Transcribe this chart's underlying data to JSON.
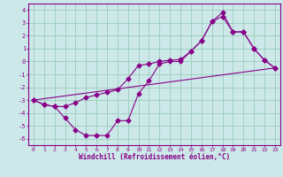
{
  "xlabel": "Windchill (Refroidissement éolien,°C)",
  "xlim": [
    -0.5,
    23.5
  ],
  "ylim": [
    -6.5,
    4.5
  ],
  "yticks": [
    -6,
    -5,
    -4,
    -3,
    -2,
    -1,
    0,
    1,
    2,
    3,
    4
  ],
  "xticks": [
    0,
    1,
    2,
    3,
    4,
    5,
    6,
    7,
    8,
    9,
    10,
    11,
    12,
    13,
    14,
    15,
    16,
    17,
    18,
    19,
    20,
    21,
    22,
    23
  ],
  "bg_color": "#cce8e8",
  "line_color": "#880088",
  "grid_color": "#99ccbb",
  "line1_x": [
    0,
    1,
    2,
    3,
    4,
    5,
    6,
    7,
    8,
    9,
    10,
    11,
    12,
    13,
    14,
    15,
    16,
    17,
    18,
    19,
    20,
    21,
    22,
    23
  ],
  "line1_y": [
    -3.0,
    -3.35,
    -3.5,
    -4.4,
    -5.3,
    -5.75,
    -5.75,
    -5.75,
    -4.6,
    -4.6,
    -2.5,
    -1.5,
    -0.2,
    0.0,
    0.0,
    0.8,
    1.6,
    3.1,
    3.8,
    2.3,
    2.3,
    1.0,
    0.1,
    -0.5
  ],
  "line2_x": [
    0,
    1,
    2,
    3,
    4,
    5,
    6,
    7,
    8,
    9,
    10,
    11,
    12,
    13,
    14,
    15,
    16,
    17,
    18,
    19,
    20,
    21,
    22,
    23
  ],
  "line2_y": [
    -3.0,
    -3.35,
    -3.5,
    -3.5,
    -3.2,
    -2.8,
    -2.6,
    -2.4,
    -2.2,
    -1.35,
    -0.3,
    -0.2,
    0.0,
    0.1,
    0.15,
    0.8,
    1.6,
    3.1,
    3.5,
    2.3,
    2.3,
    1.0,
    0.1,
    -0.5
  ],
  "line3_x": [
    0,
    23
  ],
  "line3_y": [
    -3.0,
    -0.5
  ],
  "marker": "D",
  "markersize": 2.5,
  "linewidth": 0.8
}
